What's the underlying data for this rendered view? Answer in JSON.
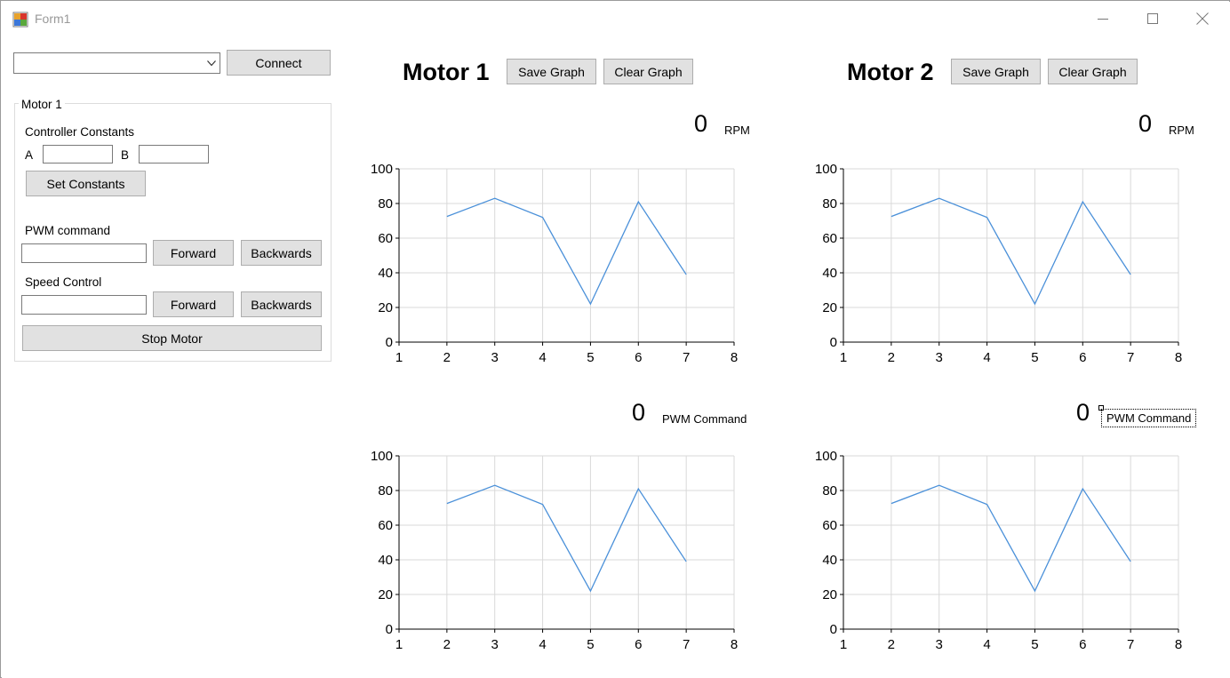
{
  "window": {
    "title": "Form1",
    "icon": "form-app-icon",
    "controls": [
      "minimize-icon",
      "maximize-icon",
      "close-icon"
    ]
  },
  "connection": {
    "port_value": "",
    "connect_label": "Connect"
  },
  "motor_panel": {
    "caption": "Motor 1",
    "controller_constants_label": "Controller Constants",
    "a_label": "A",
    "a_value": "",
    "b_label": "B",
    "b_value": "",
    "set_constants_label": "Set Constants",
    "pwm_label": "PWM command",
    "pwm_value": "",
    "pwm_forward_label": "Forward",
    "pwm_backwards_label": "Backwards",
    "speed_label": "Speed Control",
    "speed_value": "",
    "speed_forward_label": "Forward",
    "speed_backwards_label": "Backwards",
    "stop_label": "Stop Motor"
  },
  "motors": [
    {
      "title": "Motor 1",
      "save_label": "Save Graph",
      "clear_label": "Clear Graph",
      "rpm_value": "0",
      "rpm_unit": "RPM",
      "pwm_value": "0",
      "pwm_unit": "PWM Command"
    },
    {
      "title": "Motor 2",
      "save_label": "Save Graph",
      "clear_label": "Clear Graph",
      "rpm_value": "0",
      "rpm_unit": "RPM",
      "pwm_value": "0",
      "pwm_unit": "PWM Command"
    }
  ],
  "chart_data": [
    {
      "type": "line",
      "x": [
        2,
        3,
        4,
        5,
        6,
        7
      ],
      "values": [
        72.5,
        83,
        72,
        22,
        81,
        39
      ],
      "xlim": [
        1,
        8
      ],
      "ylim": [
        0,
        100
      ],
      "xticks": [
        "1",
        "2",
        "3",
        "4",
        "5",
        "6",
        "7",
        "8"
      ],
      "yticks": [
        "0",
        "20",
        "40",
        "60",
        "80",
        "100"
      ],
      "grid": true,
      "color": "#4a90d9"
    },
    {
      "type": "line",
      "x": [
        2,
        3,
        4,
        5,
        6,
        7
      ],
      "values": [
        72.5,
        83,
        72,
        22,
        81,
        39
      ],
      "xlim": [
        1,
        8
      ],
      "ylim": [
        0,
        100
      ],
      "xticks": [
        "1",
        "2",
        "3",
        "4",
        "5",
        "6",
        "7",
        "8"
      ],
      "yticks": [
        "0",
        "20",
        "40",
        "60",
        "80",
        "100"
      ],
      "grid": true,
      "color": "#4a90d9"
    },
    {
      "type": "line",
      "x": [
        2,
        3,
        4,
        5,
        6,
        7
      ],
      "values": [
        72.5,
        83,
        72,
        22,
        81,
        39
      ],
      "xlim": [
        1,
        8
      ],
      "ylim": [
        0,
        100
      ],
      "xticks": [
        "1",
        "2",
        "3",
        "4",
        "5",
        "6",
        "7",
        "8"
      ],
      "yticks": [
        "0",
        "20",
        "40",
        "60",
        "80",
        "100"
      ],
      "grid": true,
      "color": "#4a90d9"
    },
    {
      "type": "line",
      "x": [
        2,
        3,
        4,
        5,
        6,
        7
      ],
      "values": [
        72.5,
        83,
        72,
        22,
        81,
        39
      ],
      "xlim": [
        1,
        8
      ],
      "ylim": [
        0,
        100
      ],
      "xticks": [
        "1",
        "2",
        "3",
        "4",
        "5",
        "6",
        "7",
        "8"
      ],
      "yticks": [
        "0",
        "20",
        "40",
        "60",
        "80",
        "100"
      ],
      "grid": true,
      "color": "#4a90d9"
    }
  ]
}
